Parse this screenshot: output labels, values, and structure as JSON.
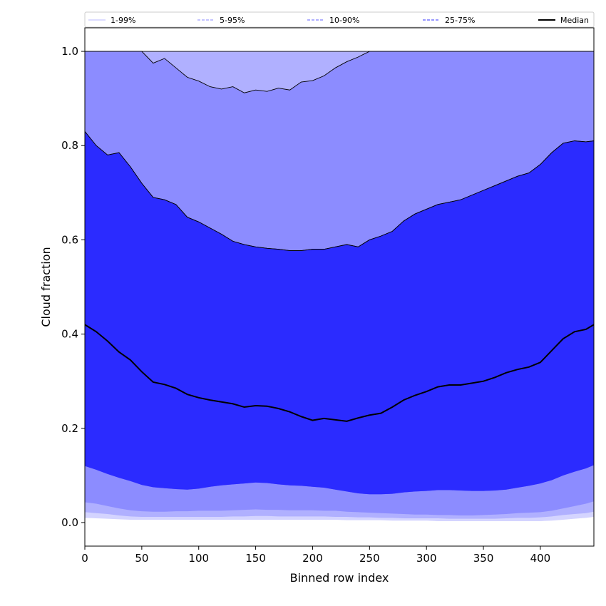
{
  "chart_data": {
    "type": "area",
    "xlabel": "Binned row index",
    "ylabel": "Cloud fraction",
    "xlim": [
      0,
      447
    ],
    "ylim": [
      -0.05,
      1.05
    ],
    "x_ticks": [
      0,
      50,
      100,
      150,
      200,
      250,
      300,
      350,
      400
    ],
    "y_ticks": [
      0.0,
      0.2,
      0.4,
      0.6,
      0.8,
      1.0
    ],
    "x_tick_labels": [
      "0",
      "50",
      "100",
      "150",
      "200",
      "250",
      "300",
      "350",
      "400"
    ],
    "y_tick_labels": [
      "0.0",
      "0.2",
      "0.4",
      "0.6",
      "0.8",
      "1.0"
    ],
    "grid": false,
    "legend_position": "top",
    "x": [
      0,
      10,
      20,
      30,
      40,
      50,
      60,
      70,
      80,
      90,
      100,
      110,
      120,
      130,
      140,
      150,
      160,
      170,
      180,
      190,
      200,
      210,
      220,
      230,
      240,
      250,
      260,
      270,
      280,
      290,
      300,
      310,
      320,
      330,
      340,
      350,
      360,
      370,
      380,
      390,
      400,
      410,
      420,
      430,
      440,
      447
    ],
    "bands": [
      {
        "name": "1-99%",
        "color": "#d4d4ff",
        "lower": [
          0.01,
          0.009,
          0.008,
          0.007,
          0.006,
          0.006,
          0.006,
          0.006,
          0.006,
          0.006,
          0.006,
          0.006,
          0.006,
          0.006,
          0.006,
          0.006,
          0.006,
          0.006,
          0.006,
          0.006,
          0.006,
          0.006,
          0.006,
          0.005,
          0.005,
          0.005,
          0.005,
          0.004,
          0.004,
          0.004,
          0.004,
          0.003,
          0.003,
          0.003,
          0.003,
          0.003,
          0.003,
          0.003,
          0.003,
          0.003,
          0.003,
          0.004,
          0.006,
          0.008,
          0.01,
          0.012
        ],
        "upper": [
          1.0,
          1.0,
          1.0,
          1.0,
          1.0,
          1.0,
          1.0,
          1.0,
          1.0,
          1.0,
          1.0,
          1.0,
          1.0,
          1.0,
          1.0,
          1.0,
          1.0,
          1.0,
          1.0,
          1.0,
          1.0,
          1.0,
          1.0,
          1.0,
          1.0,
          1.0,
          1.0,
          1.0,
          1.0,
          1.0,
          1.0,
          1.0,
          1.0,
          1.0,
          1.0,
          1.0,
          1.0,
          1.0,
          1.0,
          1.0,
          1.0,
          1.0,
          1.0,
          1.0,
          1.0,
          1.0
        ]
      },
      {
        "name": "5-95%",
        "color": "#b0b0ff",
        "lower": [
          0.022,
          0.02,
          0.018,
          0.015,
          0.013,
          0.012,
          0.012,
          0.012,
          0.012,
          0.012,
          0.012,
          0.012,
          0.012,
          0.013,
          0.013,
          0.014,
          0.014,
          0.013,
          0.013,
          0.013,
          0.013,
          0.013,
          0.012,
          0.012,
          0.011,
          0.011,
          0.01,
          0.01,
          0.009,
          0.009,
          0.009,
          0.009,
          0.008,
          0.008,
          0.008,
          0.008,
          0.008,
          0.009,
          0.01,
          0.01,
          0.011,
          0.013,
          0.016,
          0.018,
          0.02,
          0.023
        ],
        "upper": [
          1.0,
          1.0,
          1.0,
          1.0,
          1.0,
          1.0,
          1.0,
          1.0,
          1.0,
          1.0,
          1.0,
          1.0,
          1.0,
          1.0,
          1.0,
          1.0,
          1.0,
          1.0,
          1.0,
          1.0,
          1.0,
          1.0,
          1.0,
          1.0,
          1.0,
          1.0,
          1.0,
          1.0,
          1.0,
          1.0,
          1.0,
          1.0,
          1.0,
          1.0,
          1.0,
          1.0,
          1.0,
          1.0,
          1.0,
          1.0,
          1.0,
          1.0,
          1.0,
          1.0,
          1.0,
          1.0
        ]
      },
      {
        "name": "10-90%",
        "color": "#8c8cff",
        "lower": [
          0.043,
          0.04,
          0.035,
          0.03,
          0.026,
          0.024,
          0.023,
          0.023,
          0.024,
          0.024,
          0.025,
          0.025,
          0.025,
          0.026,
          0.027,
          0.028,
          0.027,
          0.027,
          0.026,
          0.026,
          0.026,
          0.025,
          0.025,
          0.023,
          0.022,
          0.021,
          0.02,
          0.019,
          0.018,
          0.017,
          0.017,
          0.016,
          0.016,
          0.015,
          0.015,
          0.016,
          0.017,
          0.018,
          0.02,
          0.021,
          0.022,
          0.025,
          0.03,
          0.035,
          0.04,
          0.045
        ],
        "upper": [
          1.0,
          1.0,
          1.0,
          1.0,
          1.0,
          1.0,
          0.975,
          0.985,
          0.965,
          0.945,
          0.937,
          0.925,
          0.92,
          0.925,
          0.912,
          0.918,
          0.915,
          0.922,
          0.918,
          0.935,
          0.938,
          0.948,
          0.965,
          0.978,
          0.988,
          1.0,
          1.0,
          1.0,
          1.0,
          1.0,
          1.0,
          1.0,
          1.0,
          1.0,
          1.0,
          1.0,
          1.0,
          1.0,
          1.0,
          1.0,
          1.0,
          1.0,
          1.0,
          1.0,
          1.0,
          1.0
        ]
      },
      {
        "name": "25-75%",
        "color": "#5555ff",
        "lower": [
          0.12,
          0.112,
          0.103,
          0.095,
          0.088,
          0.08,
          0.075,
          0.073,
          0.071,
          0.07,
          0.072,
          0.076,
          0.079,
          0.081,
          0.083,
          0.085,
          0.084,
          0.081,
          0.079,
          0.078,
          0.076,
          0.074,
          0.07,
          0.066,
          0.062,
          0.06,
          0.06,
          0.061,
          0.064,
          0.066,
          0.067,
          0.069,
          0.069,
          0.068,
          0.067,
          0.067,
          0.068,
          0.07,
          0.074,
          0.078,
          0.083,
          0.09,
          0.1,
          0.108,
          0.115,
          0.122
        ],
        "upper": [
          0.83,
          0.8,
          0.78,
          0.785,
          0.755,
          0.72,
          0.69,
          0.685,
          0.675,
          0.648,
          0.638,
          0.625,
          0.612,
          0.597,
          0.59,
          0.585,
          0.582,
          0.58,
          0.577,
          0.577,
          0.58,
          0.58,
          0.585,
          0.59,
          0.585,
          0.6,
          0.608,
          0.618,
          0.64,
          0.655,
          0.665,
          0.675,
          0.68,
          0.685,
          0.695,
          0.705,
          0.715,
          0.725,
          0.735,
          0.742,
          0.76,
          0.785,
          0.805,
          0.81,
          0.808,
          0.81
        ]
      }
    ],
    "series": [
      {
        "name": "Median",
        "color": "#000000",
        "values": [
          0.42,
          0.405,
          0.385,
          0.362,
          0.345,
          0.32,
          0.298,
          0.293,
          0.285,
          0.272,
          0.265,
          0.26,
          0.256,
          0.252,
          0.245,
          0.248,
          0.247,
          0.242,
          0.235,
          0.225,
          0.217,
          0.221,
          0.218,
          0.215,
          0.222,
          0.228,
          0.232,
          0.245,
          0.26,
          0.27,
          0.278,
          0.288,
          0.292,
          0.292,
          0.296,
          0.3,
          0.308,
          0.318,
          0.325,
          0.33,
          0.34,
          0.365,
          0.39,
          0.405,
          0.41,
          0.42
        ]
      }
    ],
    "legend": [
      {
        "label": "1-99%",
        "color": "#c8c8ff",
        "style": "solid"
      },
      {
        "label": "5-95%",
        "color": "#a0a0ff",
        "style": "dashed"
      },
      {
        "label": "10-90%",
        "color": "#8080ff",
        "style": "dashed"
      },
      {
        "label": "25-75%",
        "color": "#5a5aff",
        "style": "dashed"
      },
      {
        "label": "Median",
        "color": "#000000",
        "style": "solid"
      }
    ],
    "band_fill_core": "#2b2bff"
  }
}
